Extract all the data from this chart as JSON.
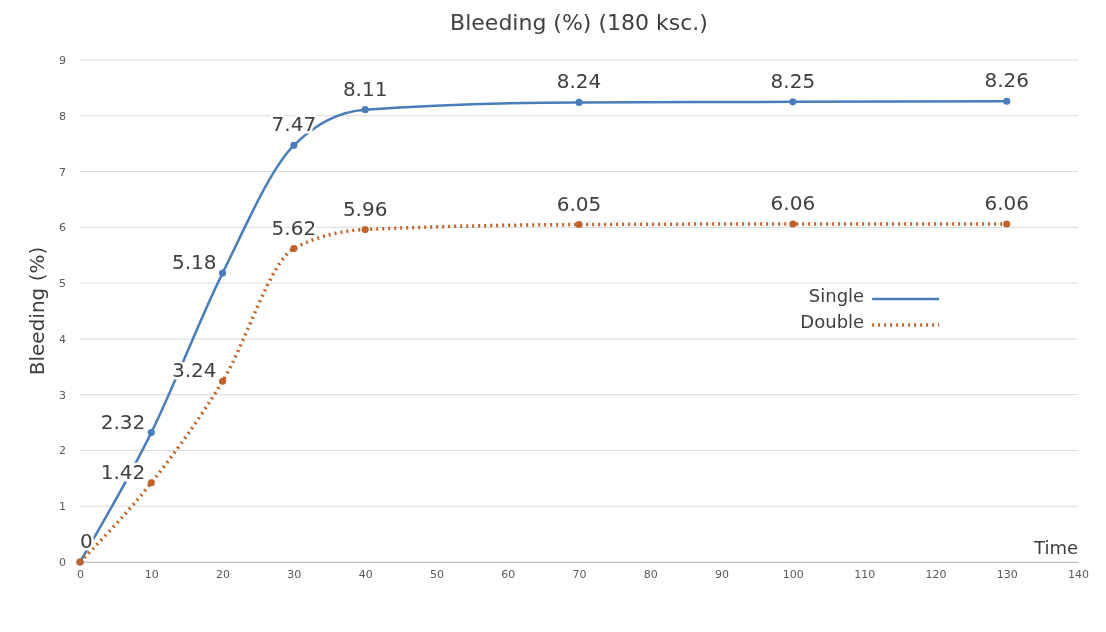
{
  "chart_data": {
    "type": "line",
    "title": "Bleeding (%) (180 ksc.)",
    "xlabel": "Time",
    "ylabel": "Bleeding (%)",
    "x": [
      0,
      10,
      20,
      30,
      40,
      70,
      100,
      130
    ],
    "series": [
      {
        "name": "Single",
        "color": "#4a7ebb",
        "line_style": "solid",
        "values": [
          0,
          2.32,
          5.18,
          7.47,
          8.11,
          8.24,
          8.25,
          8.26
        ],
        "value_labels": [
          "0",
          "2.32",
          "5.18",
          "7.47",
          "8.11",
          "8.24",
          "8.25",
          "8.26"
        ]
      },
      {
        "name": "Double",
        "color": "#c0632a",
        "line_style": "dotted",
        "values": [
          0,
          1.42,
          3.24,
          5.62,
          5.96,
          6.05,
          6.06,
          6.06
        ],
        "value_labels": [
          null,
          "1.42",
          "3.24",
          "5.62",
          "5.96",
          "6.05",
          "6.06",
          "6.06"
        ]
      }
    ],
    "xlim": [
      0,
      140
    ],
    "xticks": [
      0,
      10,
      20,
      30,
      40,
      50,
      60,
      70,
      80,
      90,
      100,
      110,
      120,
      130,
      140
    ],
    "ylim": [
      0,
      9
    ],
    "yticks": [
      0,
      1,
      2,
      3,
      4,
      5,
      6,
      7,
      8,
      9
    ],
    "grid": "y",
    "legend": "right",
    "marker": "circle"
  }
}
